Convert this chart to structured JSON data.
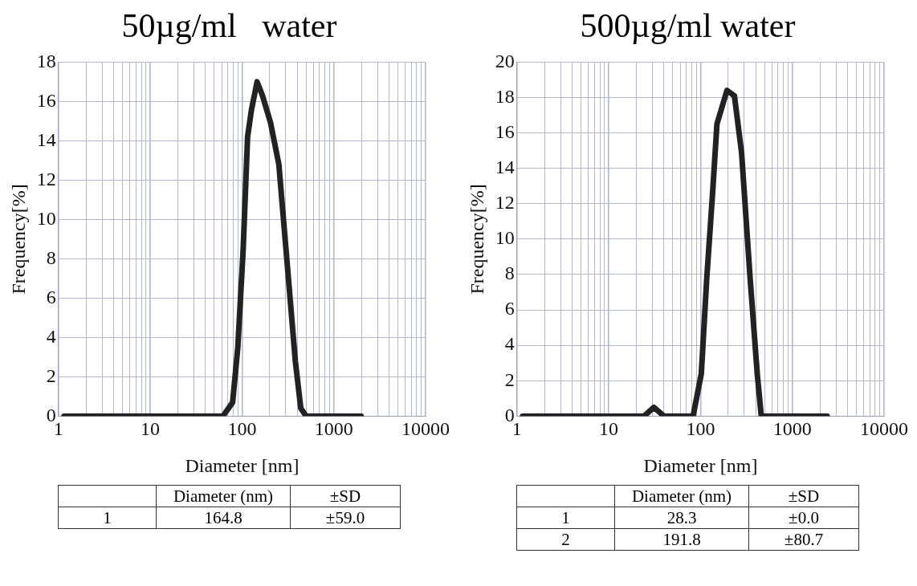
{
  "chart_data": [
    {
      "type": "line",
      "title": "50µg/ml   water",
      "xlabel": "Diameter [nm]",
      "ylabel": "Frequency[%]",
      "log": "x",
      "grid": true,
      "marker": "none",
      "line_style": "solid",
      "xlim": [
        1,
        10000
      ],
      "ylim": [
        0,
        18
      ],
      "xticks": [
        1,
        {
          "value": 2,
          "label": null
        },
        {
          "value": 3,
          "label": null
        },
        {
          "value": 4,
          "label": null
        },
        {
          "value": 5,
          "label": null
        },
        {
          "value": 6,
          "label": null
        },
        {
          "value": 7,
          "label": null
        },
        {
          "value": 8,
          "label": null
        },
        {
          "value": 9,
          "label": null
        },
        10,
        {
          "value": 20,
          "label": null
        },
        {
          "value": 30,
          "label": null
        },
        {
          "value": 40,
          "label": null
        },
        {
          "value": 50,
          "label": null
        },
        {
          "value": 60,
          "label": null
        },
        {
          "value": 70,
          "label": null
        },
        {
          "value": 80,
          "label": null
        },
        {
          "value": 90,
          "label": null
        },
        100,
        {
          "value": 200,
          "label": null
        },
        {
          "value": 300,
          "label": null
        },
        {
          "value": 400,
          "label": null
        },
        {
          "value": 500,
          "label": null
        },
        {
          "value": 600,
          "label": null
        },
        {
          "value": 700,
          "label": null
        },
        {
          "value": 800,
          "label": null
        },
        {
          "value": 900,
          "label": null
        },
        1000,
        {
          "value": 2000,
          "label": null
        },
        {
          "value": 3000,
          "label": null
        },
        {
          "value": 4000,
          "label": null
        },
        {
          "value": 5000,
          "label": null
        },
        {
          "value": 6000,
          "label": null
        },
        {
          "value": 7000,
          "label": null
        },
        {
          "value": 8000,
          "label": null
        },
        {
          "value": 9000,
          "label": null
        },
        10000
      ],
      "yticks": [
        0,
        2,
        4,
        6,
        8,
        10,
        12,
        14,
        16,
        18
      ],
      "series": [
        {
          "color": "#222222",
          "x": [
            1.15,
            62,
            79,
            90,
            103,
            115,
            127,
            146,
            167,
            205,
            252,
            310,
            381,
            437,
            500,
            1990
          ],
          "values": [
            0,
            0,
            0.7,
            3.5,
            8.5,
            14.2,
            15.6,
            17,
            16.3,
            14.9,
            12.8,
            7.8,
            2.8,
            0.4,
            0,
            0
          ]
        }
      ],
      "annotations": [
        "Diameter (nm)",
        "±SD",
        "1",
        "164.8",
        "±59.0"
      ]
    },
    {
      "type": "line",
      "title": "500µg/ml water",
      "xlabel": "Diameter [nm]",
      "ylabel": "Frequency[%]",
      "log": "x",
      "grid": true,
      "marker": "none",
      "line_style": "solid",
      "xlim": [
        1,
        10000
      ],
      "ylim": [
        0,
        20
      ],
      "xticks": [
        1,
        {
          "value": 2,
          "label": null
        },
        {
          "value": 3,
          "label": null
        },
        {
          "value": 4,
          "label": null
        },
        {
          "value": 5,
          "label": null
        },
        {
          "value": 6,
          "label": null
        },
        {
          "value": 7,
          "label": null
        },
        {
          "value": 8,
          "label": null
        },
        {
          "value": 9,
          "label": null
        },
        10,
        {
          "value": 20,
          "label": null
        },
        {
          "value": 30,
          "label": null
        },
        {
          "value": 40,
          "label": null
        },
        {
          "value": 50,
          "label": null
        },
        {
          "value": 60,
          "label": null
        },
        {
          "value": 70,
          "label": null
        },
        {
          "value": 80,
          "label": null
        },
        {
          "value": 90,
          "label": null
        },
        100,
        {
          "value": 200,
          "label": null
        },
        {
          "value": 300,
          "label": null
        },
        {
          "value": 400,
          "label": null
        },
        {
          "value": 500,
          "label": null
        },
        {
          "value": 600,
          "label": null
        },
        {
          "value": 700,
          "label": null
        },
        {
          "value": 800,
          "label": null
        },
        {
          "value": 900,
          "label": null
        },
        1000,
        {
          "value": 2000,
          "label": null
        },
        {
          "value": 3000,
          "label": null
        },
        {
          "value": 4000,
          "label": null
        },
        {
          "value": 5000,
          "label": null
        },
        {
          "value": 6000,
          "label": null
        },
        {
          "value": 7000,
          "label": null
        },
        {
          "value": 8000,
          "label": null
        },
        {
          "value": 9000,
          "label": null
        },
        10000
      ],
      "yticks": [
        0,
        2,
        4,
        6,
        8,
        10,
        12,
        14,
        16,
        18,
        20
      ],
      "series": [
        {
          "color": "#222222",
          "x": [
            1.15,
            24.3,
            31,
            40,
            83,
            102,
            117,
            135,
            151,
            194,
            234,
            280,
            347,
            415,
            459,
            2400
          ],
          "values": [
            0,
            0,
            0.5,
            0,
            0,
            2.4,
            7.8,
            12.5,
            16.5,
            18.4,
            18.1,
            14.9,
            7.8,
            2.4,
            0,
            0
          ]
        }
      ],
      "annotations": [
        "Diameter (nm)",
        "±SD",
        "1",
        "28.3",
        "±0.0",
        "2",
        "191.8",
        "±80.7"
      ]
    }
  ]
}
